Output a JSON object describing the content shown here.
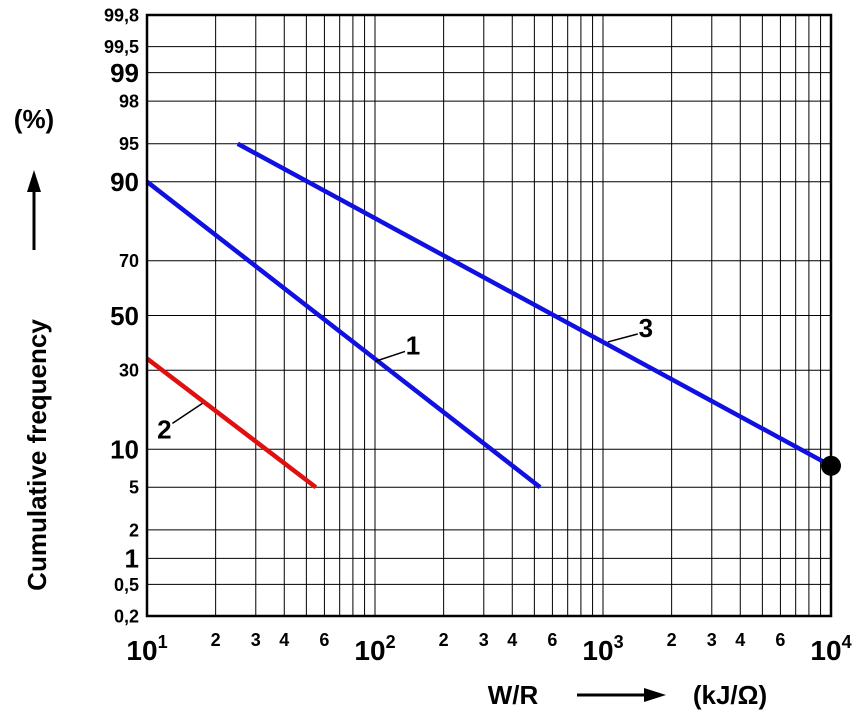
{
  "chart_data": {
    "type": "line",
    "x_scale": "log",
    "y_scale": "probability",
    "xlim": [
      10,
      10000
    ],
    "ylim": [
      0.2,
      99.8
    ],
    "grid": true,
    "xlabel": "W/R",
    "xunit": "(kJ/Ω)",
    "ylabel": "Cumulative frequency",
    "yunit": "(%)",
    "x_ticks_major": [
      {
        "value": 10,
        "base": "10",
        "exp": "1"
      },
      {
        "value": 100,
        "base": "10",
        "exp": "2"
      },
      {
        "value": 1000,
        "base": "10",
        "exp": "3"
      },
      {
        "value": 10000,
        "base": "10",
        "exp": "4"
      }
    ],
    "x_ticks_minor": [
      {
        "value": 20,
        "label": "2"
      },
      {
        "value": 30,
        "label": "3"
      },
      {
        "value": 40,
        "label": "4"
      },
      {
        "value": 60,
        "label": "6"
      },
      {
        "value": 200,
        "label": "2"
      },
      {
        "value": 300,
        "label": "3"
      },
      {
        "value": 400,
        "label": "4"
      },
      {
        "value": 600,
        "label": "6"
      },
      {
        "value": 2000,
        "label": "2"
      },
      {
        "value": 3000,
        "label": "3"
      },
      {
        "value": 4000,
        "label": "4"
      },
      {
        "value": 6000,
        "label": "6"
      }
    ],
    "y_ticks": [
      {
        "value": 0.2,
        "label": "0,2",
        "big": false
      },
      {
        "value": 0.5,
        "label": "0,5",
        "big": false
      },
      {
        "value": 1,
        "label": "1",
        "big": true
      },
      {
        "value": 2,
        "label": "2",
        "big": false
      },
      {
        "value": 5,
        "label": "5",
        "big": false
      },
      {
        "value": 10,
        "label": "10",
        "big": true
      },
      {
        "value": 30,
        "label": "30",
        "big": false
      },
      {
        "value": 50,
        "label": "50",
        "big": true
      },
      {
        "value": 70,
        "label": "70",
        "big": false
      },
      {
        "value": 90,
        "label": "90",
        "big": true
      },
      {
        "value": 95,
        "label": "95",
        "big": false
      },
      {
        "value": 98,
        "label": "98",
        "big": false
      },
      {
        "value": 99,
        "label": "99",
        "big": true
      },
      {
        "value": 99.5,
        "label": "99,5",
        "big": false
      },
      {
        "value": 99.8,
        "label": "99,8",
        "big": false
      }
    ],
    "series": [
      {
        "name": "1",
        "color": "#1010e0",
        "x": [
          10,
          530
        ],
        "y": [
          90,
          5
        ],
        "label_at": {
          "x": 100,
          "y": 33
        }
      },
      {
        "name": "2",
        "color": "#e01010",
        "x": [
          10,
          55
        ],
        "y": [
          34,
          5
        ],
        "label_at": {
          "x": 17.5,
          "y": 20
        }
      },
      {
        "name": "3",
        "color": "#1010e0",
        "x": [
          25,
          10000
        ],
        "y": [
          95,
          7.5
        ],
        "label_at": {
          "x": 1050,
          "y": 40
        },
        "end_marker": true
      }
    ]
  }
}
